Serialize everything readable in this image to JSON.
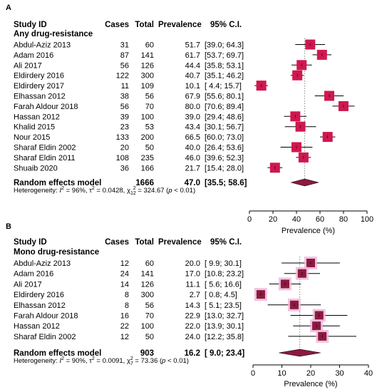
{
  "chart_data": [
    {
      "type": "forest",
      "panel_label": "A",
      "headers": {
        "study": "Study ID",
        "cases": "Cases",
        "total": "Total",
        "prevalence": "Prevalence",
        "ci": "95% C.I."
      },
      "subgroup": "Any drug-resistance",
      "studies": [
        {
          "study": "Abdul-Aziz 2013",
          "cases": "31",
          "total": "60",
          "prevalence_text": "51.7",
          "ci_text": "[39.0; 64.3]",
          "prev": 51.7,
          "lo": 39.0,
          "hi": 64.3,
          "weight": 1
        },
        {
          "study": "Adam 2016",
          "cases": "87",
          "total": "141",
          "prevalence_text": "61.7",
          "ci_text": "[53.7; 69.7]",
          "prev": 61.7,
          "lo": 53.7,
          "hi": 69.7,
          "weight": 1
        },
        {
          "study": "Ali 2017",
          "cases": "56",
          "total": "126",
          "prevalence_text": "44.4",
          "ci_text": "[35.8; 53.1]",
          "prev": 44.4,
          "lo": 35.8,
          "hi": 53.1,
          "weight": 1
        },
        {
          "study": "Eldirdery 2016",
          "cases": "122",
          "total": "300",
          "prevalence_text": "40.7",
          "ci_text": "[35.1; 46.2]",
          "prev": 40.7,
          "lo": 35.1,
          "hi": 46.2,
          "weight": 1
        },
        {
          "study": "Eldirdery 2017",
          "cases": "11",
          "total": "109",
          "prevalence_text": "10.1",
          "ci_text": "[ 4.4; 15.7]",
          "prev": 10.1,
          "lo": 4.4,
          "hi": 15.7,
          "weight": 1
        },
        {
          "study": "Elhassan 2012",
          "cases": "38",
          "total": "56",
          "prevalence_text": "67.9",
          "ci_text": "[55.6; 80.1]",
          "prev": 67.9,
          "lo": 55.6,
          "hi": 80.1,
          "weight": 1
        },
        {
          "study": "Farah Aldour 2018",
          "cases": "56",
          "total": "70",
          "prevalence_text": "80.0",
          "ci_text": "[70.6; 89.4]",
          "prev": 80.0,
          "lo": 70.6,
          "hi": 89.4,
          "weight": 1
        },
        {
          "study": "Hassan 2012",
          "cases": "39",
          "total": "100",
          "prevalence_text": "39.0",
          "ci_text": "[29.4; 48.6]",
          "prev": 39.0,
          "lo": 29.4,
          "hi": 48.6,
          "weight": 1
        },
        {
          "study": "Khalid 2015",
          "cases": "23",
          "total": "53",
          "prevalence_text": "43.4",
          "ci_text": "[30.1; 56.7]",
          "prev": 43.4,
          "lo": 30.1,
          "hi": 56.7,
          "weight": 1
        },
        {
          "study": "Nour 2015",
          "cases": "133",
          "total": "200",
          "prevalence_text": "66.5",
          "ci_text": "[60.0; 73.0]",
          "prev": 66.5,
          "lo": 60.0,
          "hi": 73.0,
          "weight": 1
        },
        {
          "study": "Sharaf Eldin 2002",
          "cases": "20",
          "total": "50",
          "prevalence_text": "40.0",
          "ci_text": "[26.4; 53.6]",
          "prev": 40.0,
          "lo": 26.4,
          "hi": 53.6,
          "weight": 1
        },
        {
          "study": "Sharaf Eldin 2011",
          "cases": "108",
          "total": "235",
          "prevalence_text": "46.0",
          "ci_text": "[39.6; 52.3]",
          "prev": 46.0,
          "lo": 39.6,
          "hi": 52.3,
          "weight": 1
        },
        {
          "study": "Shuaib 2020",
          "cases": "36",
          "total": "166",
          "prevalence_text": "21.7",
          "ci_text": "[15.4; 28.0]",
          "prev": 21.7,
          "lo": 15.4,
          "hi": 28.0,
          "weight": 1
        }
      ],
      "pooled": {
        "label": "Random effects model",
        "total": "1666",
        "prevalence_text": "47.0",
        "ci_text": "[35.5; 58.6]",
        "prev": 47.0,
        "lo": 35.5,
        "hi": 58.6
      },
      "heterogeneity": {
        "prefix": "Heterogeneity: ",
        "i2_sym": "I",
        "i2_val": " = 96%, ",
        "tau_sym": "τ",
        "tau_val": " = 0.0428, ",
        "chi_sym": "χ",
        "chi_df": "12",
        "chi_val": " = 324.67 (",
        "p_sym": "p",
        "p_val": " < 0.01)"
      },
      "xlim": [
        0,
        100
      ],
      "xticks": [
        0,
        20,
        40,
        60,
        80,
        100
      ],
      "xlabel": "Prevalence (%)",
      "colors": {
        "box": "#d0174f",
        "diamond": "#8c1a3e",
        "ref_line": "#888888"
      }
    },
    {
      "type": "forest",
      "panel_label": "B",
      "headers": {
        "study": "Study ID",
        "cases": "Cases",
        "total": "Total",
        "prevalence": "Prevalence",
        "ci": "95% C.I."
      },
      "subgroup": "Mono drug-resistance",
      "studies": [
        {
          "study": "Abdul-Aziz 2013",
          "cases": "12",
          "total": "60",
          "prevalence_text": "20.0",
          "ci_text": "[ 9.9; 30.1]",
          "prev": 20.0,
          "lo": 9.9,
          "hi": 30.1,
          "weight": 1
        },
        {
          "study": "Adam 2016",
          "cases": "24",
          "total": "141",
          "prevalence_text": "17.0",
          "ci_text": "[10.8; 23.2]",
          "prev": 17.0,
          "lo": 10.8,
          "hi": 23.2,
          "weight": 1
        },
        {
          "study": "Ali 2017",
          "cases": "14",
          "total": "126",
          "prevalence_text": "11.1",
          "ci_text": "[ 5.6; 16.6]",
          "prev": 11.1,
          "lo": 5.6,
          "hi": 16.6,
          "weight": 1
        },
        {
          "study": "Eldirdery 2016",
          "cases": "8",
          "total": "300",
          "prevalence_text": "2.7",
          "ci_text": "[ 0.8; 4.5]",
          "prev": 2.7,
          "lo": 0.8,
          "hi": 4.5,
          "weight": 1
        },
        {
          "study": "Elhassan 2012",
          "cases": "8",
          "total": "56",
          "prevalence_text": "14.3",
          "ci_text": "[ 5.1; 23.5]",
          "prev": 14.3,
          "lo": 5.1,
          "hi": 23.5,
          "weight": 1
        },
        {
          "study": "Farah Aldour 2018",
          "cases": "16",
          "total": "70",
          "prevalence_text": "22.9",
          "ci_text": "[13.0; 32.7]",
          "prev": 22.9,
          "lo": 13.0,
          "hi": 32.7,
          "weight": 1
        },
        {
          "study": "Hassan 2012",
          "cases": "22",
          "total": "100",
          "prevalence_text": "22.0",
          "ci_text": "[13.9; 30.1]",
          "prev": 22.0,
          "lo": 13.9,
          "hi": 30.1,
          "weight": 1
        },
        {
          "study": "Sharaf Eldin 2002",
          "cases": "12",
          "total": "50",
          "prevalence_text": "24.0",
          "ci_text": "[12.2; 35.8]",
          "prev": 24.0,
          "lo": 12.2,
          "hi": 35.8,
          "weight": 1
        }
      ],
      "pooled": {
        "label": "Random effects model",
        "total": "903",
        "prevalence_text": "16.2",
        "ci_text": "[ 9.0; 23.4]",
        "prev": 16.2,
        "lo": 9.0,
        "hi": 23.4
      },
      "heterogeneity": {
        "prefix": "Heterogeneity: ",
        "i2_sym": "I",
        "i2_val": " = 90%, ",
        "tau_sym": "τ",
        "tau_val": " = 0.0091, ",
        "chi_sym": "χ",
        "chi_df": "7",
        "chi_val": " = 73.36 (",
        "p_sym": "p",
        "p_val": " < 0.01)"
      },
      "xlim": [
        0,
        40
      ],
      "xticks": [
        0,
        10,
        20,
        30,
        40
      ],
      "xlabel": "Prevalence (%)",
      "colors": {
        "box": "#8c1a3e",
        "box_halo": "#f0b8dc",
        "diamond": "#8c1a3e",
        "ref_line": "#888888"
      }
    }
  ]
}
